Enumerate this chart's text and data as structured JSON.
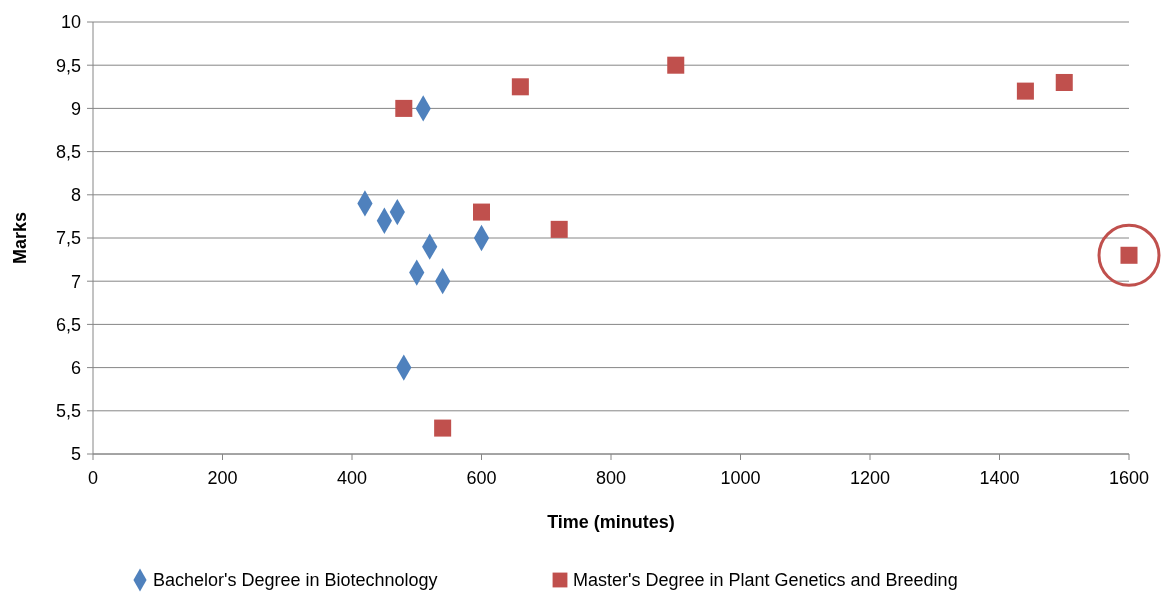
{
  "chart_data": {
    "type": "scatter",
    "xlabel": "Time (minutes)",
    "ylabel": "Marks",
    "xlim": [
      0,
      1600
    ],
    "xticks": [
      0,
      200,
      400,
      600,
      800,
      1000,
      1200,
      1400,
      1600
    ],
    "ylim": [
      5,
      10
    ],
    "yticks": [
      5,
      {
        "value": 5.5,
        "label": "5,5"
      },
      6,
      {
        "value": 6.5,
        "label": "6,5"
      },
      7,
      {
        "value": 7.5,
        "label": "7,5"
      },
      8,
      {
        "value": 8.5,
        "label": "8,5"
      },
      9,
      {
        "value": 9.5,
        "label": "9,5"
      },
      10
    ],
    "grid": "y",
    "legend": "bottom",
    "series": [
      {
        "name": "Bachelor's Degree in Biotechnology",
        "color": "#4f81bd",
        "marker": "diamond",
        "x": [
          420,
          450,
          470,
          510,
          520,
          500,
          540,
          600,
          480
        ],
        "values": [
          7.9,
          7.7,
          7.8,
          9.0,
          7.4,
          7.1,
          7.0,
          7.5,
          6.0
        ]
      },
      {
        "name": "Master's Degree in Plant Genetics and Breeding",
        "color": "#c0504d",
        "marker": "square",
        "x": [
          480,
          540,
          600,
          660,
          720,
          900,
          1440,
          1500,
          1600
        ],
        "values": [
          9.0,
          5.3,
          7.8,
          9.25,
          7.6,
          9.5,
          9.2,
          9.3,
          7.3
        ]
      }
    ]
  }
}
